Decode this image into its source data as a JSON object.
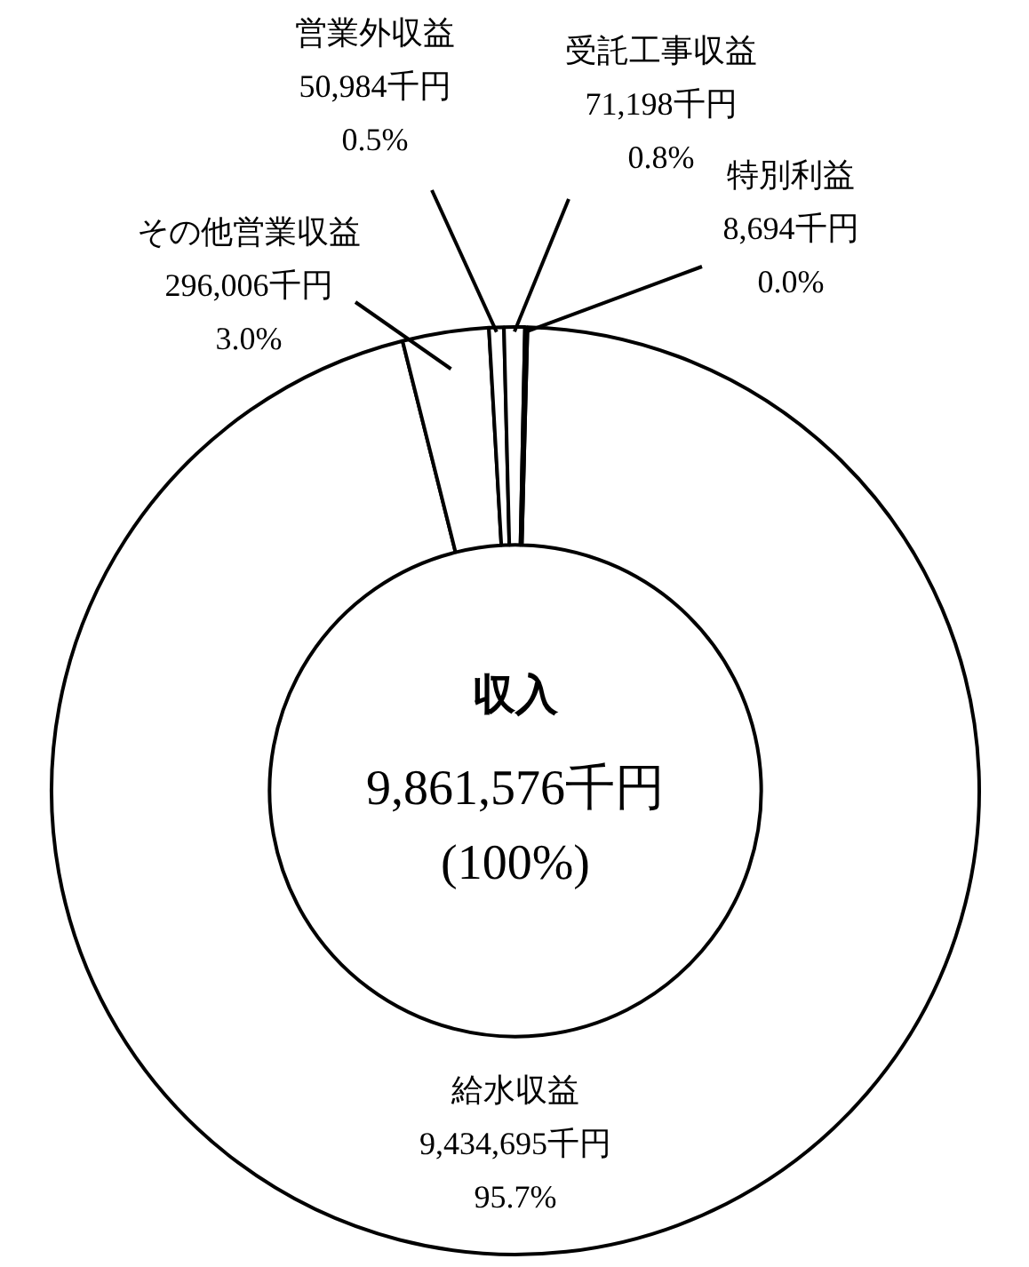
{
  "chart_data": {
    "type": "donut",
    "title": "収入",
    "annotations": [
      "9,861,576千円",
      "(100%)"
    ],
    "categories": [
      "給水収益",
      "その他営業収益",
      "営業外収益",
      "受託工事収益",
      "特別利益"
    ],
    "values": [
      9434695,
      296006,
      50984,
      71198,
      8694
    ],
    "colors": [
      "#ffffff",
      "#ffffff",
      "#ffffff",
      "#ffffff",
      "#ffffff"
    ],
    "value_labels": [
      "9,434,695千円\n95.7%",
      "296,006千円\n3.0%",
      "50,984千円\n0.5%",
      "71,198千円\n0.8%",
      "8,694千円\n0.0%"
    ],
    "legend": false
  }
}
